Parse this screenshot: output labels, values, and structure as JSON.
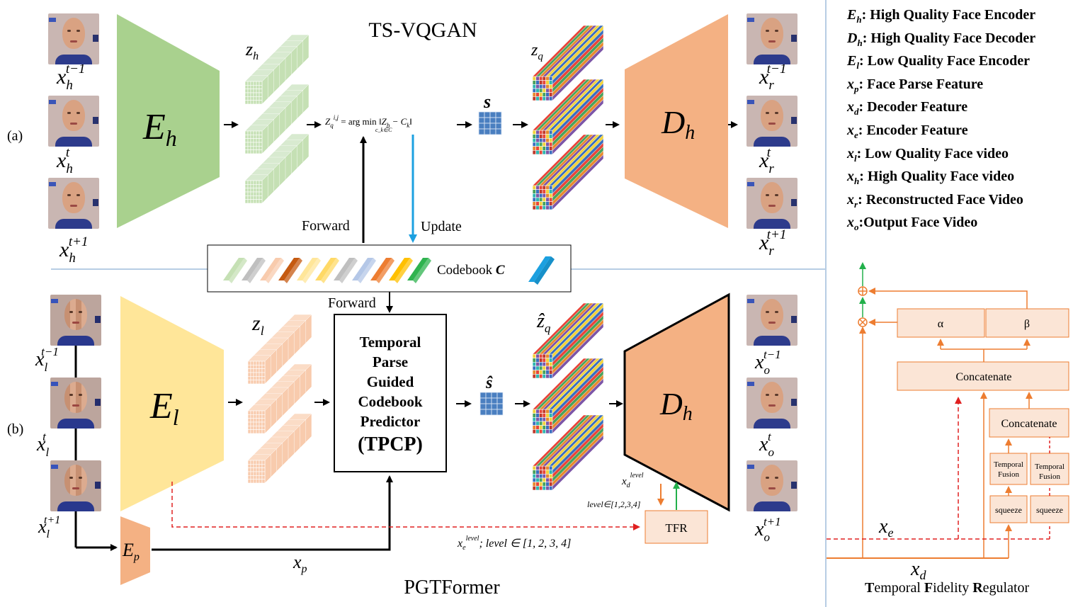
{
  "section_a": {
    "label": "(a)",
    "title": "TS-VQGAN"
  },
  "section_b": {
    "label": "(b)",
    "title": "PGTFormer"
  },
  "encoders": {
    "eh": {
      "main": "E",
      "sub": "h"
    },
    "dh": {
      "main": "D",
      "sub": "h"
    },
    "el": {
      "main": "E",
      "sub": "l"
    },
    "dh2": {
      "main": "D",
      "sub": "h"
    },
    "ep": {
      "main": "E",
      "sub": "p"
    }
  },
  "input_labels_a": [
    {
      "base": "x",
      "sub": "h",
      "sup": "t−1"
    },
    {
      "base": "x",
      "sub": "h",
      "sup": "t"
    },
    {
      "base": "x",
      "sub": "h",
      "sup": "t+1"
    }
  ],
  "output_labels_a": [
    {
      "base": "x",
      "sub": "r",
      "sup": "t−1"
    },
    {
      "base": "x",
      "sub": "r",
      "sup": "t"
    },
    {
      "base": "x",
      "sub": "r",
      "sup": "t+1"
    }
  ],
  "input_labels_b": [
    {
      "base": "x",
      "sub": "l",
      "sup": "t−1"
    },
    {
      "base": "x",
      "sub": "l",
      "sup": "t"
    },
    {
      "base": "x",
      "sub": "l",
      "sup": "t+1"
    }
  ],
  "output_labels_b": [
    {
      "base": "x",
      "sub": "o",
      "sup": "t−1"
    },
    {
      "base": "x",
      "sub": "o",
      "sup": "t"
    },
    {
      "base": "x",
      "sub": "o",
      "sup": "t+1"
    }
  ],
  "feature_labels": {
    "zh": "z",
    "zh_sub": "h",
    "zq": "z",
    "zq_sub": "q",
    "zl": "z",
    "zl_sub": "l",
    "zq_hat": "ẑ",
    "zq_hat_sub": "q",
    "s": "s",
    "s_hat": "ŝ"
  },
  "formula": "Z_q^{i,j} = arg min_{c_k∈C} ‖Z_h − C_k‖",
  "formula_parts": {
    "lhs": "Z",
    "lhs_sub": "q",
    "lhs_sup": "i,j",
    "eq": " = arg min ",
    "argsub": "c_k∈C",
    "rhs": "‖Z",
    "rhs_sub": "h",
    "minus": " − C",
    "ck_sub": "k",
    "end": "‖"
  },
  "arrows": {
    "forward_top": "Forward",
    "update": "Update",
    "forward_mid": "Forward"
  },
  "codebook": {
    "label": "Codebook ",
    "symbol": "C"
  },
  "tpcp": {
    "lines": [
      "Temporal",
      "Parse",
      "Guided",
      "Codebook",
      "Predictor",
      "(TPCP)"
    ]
  },
  "tfr_label": "TFR",
  "xd_level": {
    "base": "x",
    "sub": "d",
    "sup": "level"
  },
  "level_range": "level∈[1,2,3,4]",
  "xe_level": {
    "base": "x",
    "sub": "e",
    "sup": "level",
    "tail": "; level ∈ [1, 2, 3, 4]"
  },
  "xp_label": {
    "base": "x",
    "sub": "p"
  },
  "legend": [
    {
      "sym": "E",
      "sub": "h",
      "text": ": High Quality Face Encoder"
    },
    {
      "sym": "D",
      "sub": "h",
      "text": ": High Quality Face Decoder"
    },
    {
      "sym": "E",
      "sub": "l",
      "text": ": Low Quality Face Encoder"
    },
    {
      "sym": "x",
      "sub": "p",
      "text": ": Face Parse Feature"
    },
    {
      "sym": "x",
      "sub": "d",
      "text": ": Decoder Feature"
    },
    {
      "sym": "x",
      "sub": "e",
      "text": ": Encoder Feature"
    },
    {
      "sym": "x",
      "sub": "l",
      "text": ":  Low Quality Face video"
    },
    {
      "sym": "x",
      "sub": "h",
      "text": ": High Quality Face video"
    },
    {
      "sym": "x",
      "sub": "r",
      "text": ":  Reconstructed Face Video"
    },
    {
      "sym": "x",
      "sub": "o",
      "text": ":Output Face Video"
    }
  ],
  "tfr_detail": {
    "alpha": "α",
    "beta": "β",
    "concat_top": "Concatenate",
    "concat_inner": "Concatenate",
    "temporal_fusion_1": [
      "Temporal",
      "Fusion"
    ],
    "temporal_fusion_2": [
      "Temporal",
      "Fusion"
    ],
    "squeeze_1": "squeeze",
    "squeeze_2": "squeeze",
    "xe": {
      "base": "x",
      "sub": "e"
    },
    "xd": {
      "base": "x",
      "sub": "d"
    },
    "caption": {
      "p1": "T",
      "p2": "emporal ",
      "p3": "F",
      "p4": "idelity ",
      "p5": "R",
      "p6": "egulator"
    }
  },
  "colors": {
    "green_block": "#a9d18e",
    "orange_block": "#f4b183",
    "yellow_block": "#ffe699",
    "zh_bar": "#c5e0b4",
    "zl_bar": "#f8cbad",
    "tfr_fill": "#fbe5d6",
    "tfr_stroke": "#ed7d31",
    "dashed_red": "#e02020",
    "update_blue": "#1ca0e0",
    "arrow_green": "#22b04a"
  }
}
